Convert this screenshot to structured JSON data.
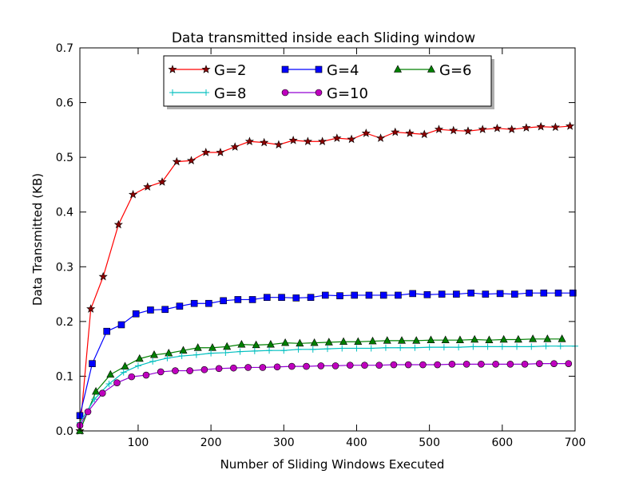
{
  "chart_data": {
    "type": "line",
    "title": "Data transmitted inside each Sliding window",
    "xlabel": "Number of Sliding Windows Executed",
    "ylabel": "Data Transmitted (KB)",
    "xlim": [
      20,
      700
    ],
    "ylim": [
      0.0,
      0.7
    ],
    "x_ticks": [
      "100",
      "200",
      "300",
      "400",
      "500",
      "600",
      "700"
    ],
    "y_ticks": [
      "0.0",
      "0.1",
      "0.2",
      "0.3",
      "0.4",
      "0.5",
      "0.6",
      "0.7"
    ],
    "grid": false,
    "legend": {
      "placement": "top-center",
      "columns": 3
    },
    "series": [
      {
        "name": "G=2",
        "color": "#ff0000",
        "marker": "star",
        "marker_color": "#8b0000",
        "x": [
          20,
          35,
          52,
          73,
          93,
          113,
          133,
          153,
          173,
          193,
          213,
          233,
          253,
          273,
          293,
          313,
          333,
          353,
          373,
          393,
          413,
          433,
          453,
          473,
          493,
          513,
          533,
          553,
          573,
          593,
          613,
          633,
          653,
          673,
          693
        ],
        "y": [
          0.0,
          0.223,
          0.282,
          0.377,
          0.432,
          0.446,
          0.455,
          0.492,
          0.494,
          0.509,
          0.509,
          0.519,
          0.529,
          0.527,
          0.523,
          0.531,
          0.529,
          0.529,
          0.535,
          0.533,
          0.544,
          0.535,
          0.546,
          0.544,
          0.542,
          0.551,
          0.549,
          0.548,
          0.551,
          0.553,
          0.551,
          0.554,
          0.556,
          0.555,
          0.557
        ]
      },
      {
        "name": "G=4",
        "color": "#0000ff",
        "marker": "square",
        "marker_color": "#0000ff",
        "x": [
          20,
          37,
          57,
          77,
          97,
          117,
          137,
          157,
          177,
          197,
          217,
          237,
          257,
          277,
          297,
          317,
          337,
          357,
          377,
          397,
          417,
          437,
          457,
          477,
          497,
          517,
          537,
          557,
          577,
          597,
          617,
          637,
          657,
          677,
          697
        ],
        "y": [
          0.028,
          0.123,
          0.182,
          0.194,
          0.214,
          0.221,
          0.222,
          0.228,
          0.233,
          0.233,
          0.238,
          0.24,
          0.24,
          0.244,
          0.244,
          0.243,
          0.244,
          0.248,
          0.247,
          0.248,
          0.248,
          0.248,
          0.248,
          0.251,
          0.249,
          0.25,
          0.25,
          0.252,
          0.25,
          0.251,
          0.25,
          0.252,
          0.252,
          0.252,
          0.252
        ]
      },
      {
        "name": "G=6",
        "color": "#008000",
        "marker": "triangle",
        "marker_color": "#008000",
        "x": [
          20,
          42,
          62,
          82,
          102,
          122,
          142,
          162,
          182,
          202,
          222,
          242,
          262,
          282,
          302,
          322,
          342,
          362,
          382,
          402,
          422,
          442,
          462,
          482,
          502,
          522,
          542,
          562,
          582,
          602,
          622,
          642,
          662,
          682
        ],
        "y": [
          0.0,
          0.072,
          0.103,
          0.118,
          0.132,
          0.139,
          0.142,
          0.147,
          0.152,
          0.152,
          0.154,
          0.158,
          0.157,
          0.158,
          0.161,
          0.16,
          0.161,
          0.162,
          0.163,
          0.163,
          0.164,
          0.165,
          0.165,
          0.165,
          0.166,
          0.166,
          0.166,
          0.167,
          0.166,
          0.167,
          0.167,
          0.168,
          0.168,
          0.168
        ]
      },
      {
        "name": "G=8",
        "color": "#00bfbf",
        "marker": "plus",
        "marker_color": "#00bfbf",
        "x": [
          20,
          40,
          60,
          80,
          100,
          120,
          140,
          160,
          180,
          200,
          220,
          240,
          260,
          280,
          300,
          320,
          340,
          360,
          380,
          400,
          420,
          440,
          460,
          480,
          500,
          520,
          540,
          560,
          580,
          600,
          620,
          640,
          660,
          680,
          700
        ],
        "y": [
          0.015,
          0.058,
          0.086,
          0.107,
          0.119,
          0.127,
          0.133,
          0.137,
          0.139,
          0.142,
          0.143,
          0.145,
          0.146,
          0.147,
          0.147,
          0.149,
          0.149,
          0.15,
          0.151,
          0.151,
          0.151,
          0.152,
          0.152,
          0.152,
          0.153,
          0.153,
          0.153,
          0.154,
          0.154,
          0.154,
          0.154,
          0.154,
          0.155,
          0.155,
          0.155
        ]
      },
      {
        "name": "G=10",
        "color": "#9400d3",
        "marker": "circle",
        "marker_color": "#bf00bf",
        "x": [
          20,
          31,
          51,
          71,
          91,
          111,
          131,
          151,
          171,
          191,
          211,
          231,
          251,
          271,
          291,
          311,
          331,
          351,
          371,
          391,
          411,
          431,
          451,
          471,
          491,
          511,
          531,
          551,
          571,
          591,
          611,
          631,
          651,
          671,
          691
        ],
        "y": [
          0.01,
          0.035,
          0.069,
          0.088,
          0.099,
          0.102,
          0.108,
          0.11,
          0.11,
          0.112,
          0.114,
          0.115,
          0.116,
          0.116,
          0.117,
          0.118,
          0.118,
          0.119,
          0.119,
          0.12,
          0.12,
          0.12,
          0.121,
          0.121,
          0.121,
          0.121,
          0.122,
          0.122,
          0.122,
          0.122,
          0.122,
          0.122,
          0.123,
          0.123,
          0.123
        ]
      }
    ]
  }
}
